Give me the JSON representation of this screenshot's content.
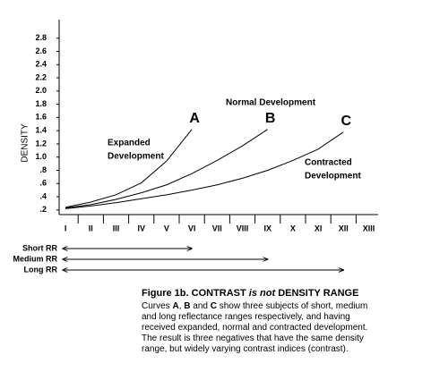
{
  "chart_data": {
    "type": "line",
    "y_label": "DENSITY",
    "categories": [
      "I",
      "II",
      "III",
      "IV",
      "V",
      "VI",
      "VII",
      "VIII",
      "IX",
      "X",
      "XI",
      "XII",
      "XIII"
    ],
    "series": [
      {
        "name": "A",
        "color": "#000000",
        "values": [
          0.24,
          0.32,
          0.43,
          0.61,
          0.94,
          1.42,
          null,
          null,
          null,
          null,
          null,
          null,
          null
        ]
      },
      {
        "name": "B",
        "color": "#000000",
        "values": [
          0.23,
          0.28,
          0.36,
          0.46,
          0.58,
          0.75,
          0.95,
          1.17,
          1.42,
          null,
          null,
          null,
          null
        ]
      },
      {
        "name": "C",
        "color": "#000000",
        "values": [
          0.22,
          0.26,
          0.31,
          0.37,
          0.43,
          0.5,
          0.58,
          0.68,
          0.8,
          0.95,
          1.12,
          1.38,
          null
        ]
      }
    ],
    "ylim": [
      0.13,
      3.08
    ],
    "yticks": [
      {
        "value": 0.2,
        "label": ".2"
      },
      {
        "value": 0.4,
        "label": ".4"
      },
      {
        "value": 0.6,
        "label": ".6"
      },
      {
        "value": 0.8,
        "label": ".8"
      },
      {
        "value": 1.0,
        "label": "1.0"
      },
      1.2,
      1.4,
      1.6,
      1.8,
      {
        "value": 2.0,
        "label": "2.0"
      },
      2.2,
      2.4,
      2.6,
      2.8
    ],
    "grid": false,
    "annotations": [
      "Expanded",
      "Development",
      "Normal Development",
      "Contracted",
      "Development"
    ],
    "range_labels": [
      "Short RR",
      "Medium RR",
      "Long RR"
    ]
  },
  "caption": {
    "label": "Figure 1b.",
    "title": [
      "CONTRAST ",
      "is not",
      " DENSITY RANGE"
    ],
    "body": [
      "Curves ",
      "A",
      ", ",
      "B",
      " and ",
      "C",
      " show three subjects of short, medium and long reflectance ranges respectively, and having received expanded, normal and contracted development. The result is three negatives that have the same density range, but widely varying contrast indices (contrast)."
    ]
  }
}
